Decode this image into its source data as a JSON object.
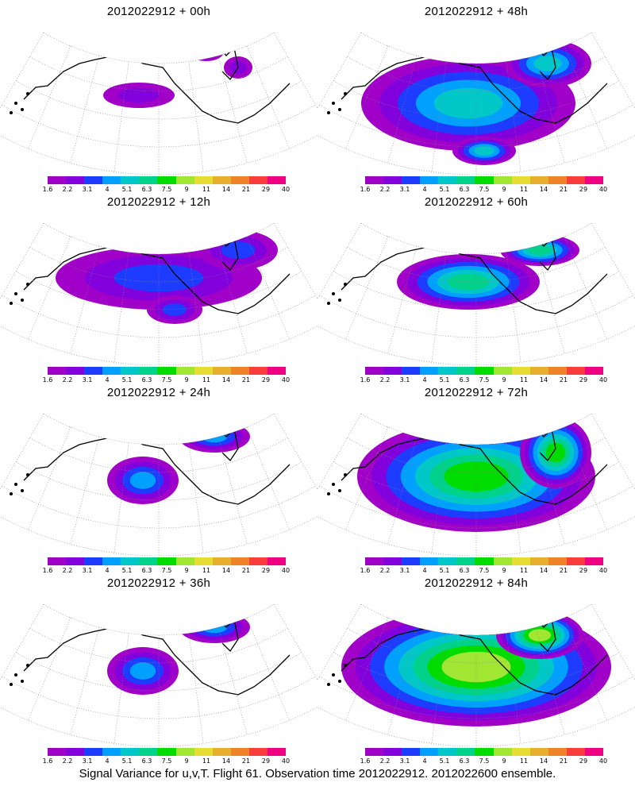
{
  "panels": [
    {
      "title": "2012022912 + 00h",
      "intensity": 0
    },
    {
      "title": "2012022912 + 48h",
      "intensity": 3
    },
    {
      "title": "2012022912 + 12h",
      "intensity": 1
    },
    {
      "title": "2012022912 + 60h",
      "intensity": 4
    },
    {
      "title": "2012022912 + 24h",
      "intensity": 2
    },
    {
      "title": "2012022912 + 72h",
      "intensity": 5
    },
    {
      "title": "2012022912 + 36h",
      "intensity": 2
    },
    {
      "title": "2012022912 + 84h",
      "intensity": 6
    }
  ],
  "colorbar": {
    "labels": [
      "1.6",
      "2.2",
      "3.1",
      "4",
      "5.1",
      "6.3",
      "7.5",
      "9",
      "11",
      "14",
      "21",
      "29",
      "40"
    ],
    "colors": [
      "#a000c8",
      "#8200dc",
      "#1e3cff",
      "#00a0ff",
      "#00c8c8",
      "#00d28c",
      "#00dc00",
      "#a0e632",
      "#e6dc32",
      "#e6af2d",
      "#f08228",
      "#fa3c3c",
      "#f00082"
    ]
  },
  "footer": "Signal Variance for u,v,T. Flight 61. Observation time 2012022912. 2012022600 ensemble."
}
